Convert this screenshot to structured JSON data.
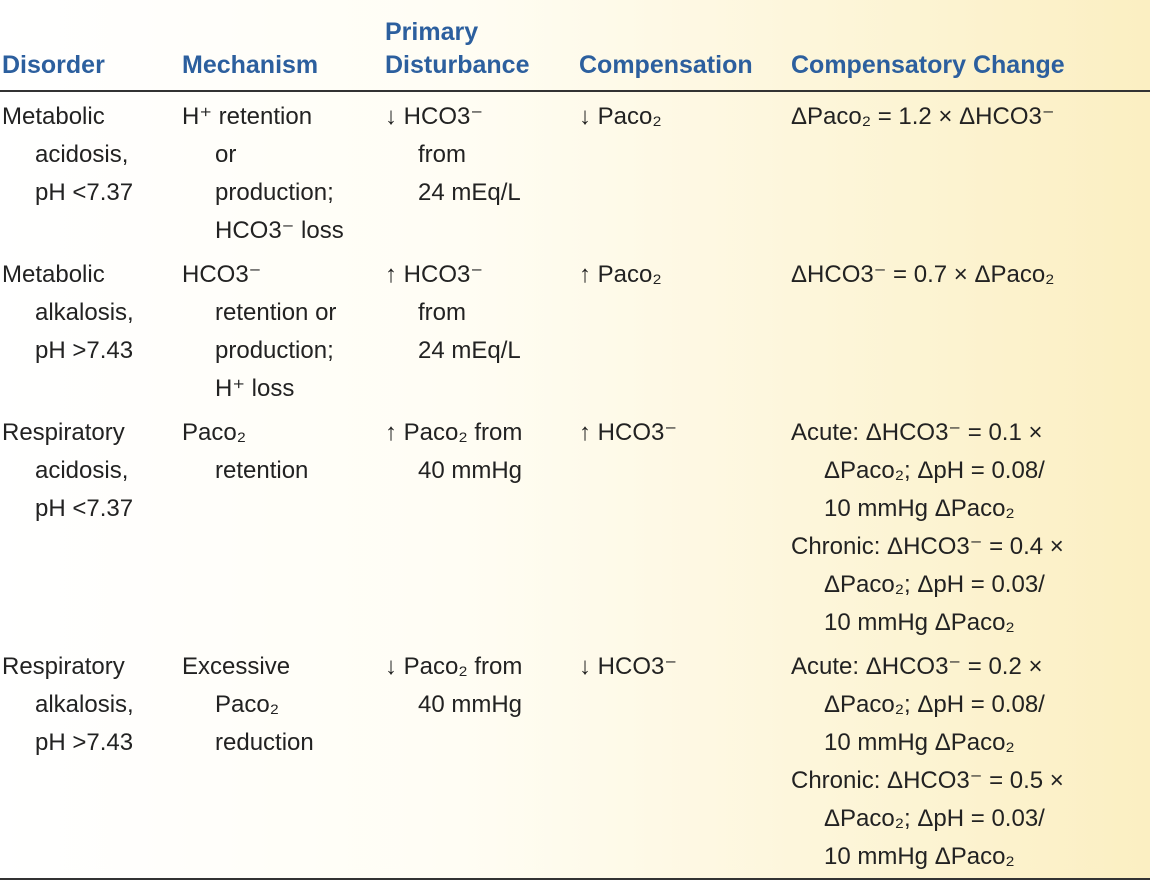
{
  "table": {
    "header": [
      [
        "Disorder"
      ],
      [
        "Mechanism"
      ],
      [
        "Primary",
        "Disturbance"
      ],
      [
        "Compensation"
      ],
      [
        "Compensatory Change"
      ]
    ],
    "rows": [
      [
        [
          [
            "Metabolic",
            "acidosis,",
            "pH <7.37"
          ]
        ],
        [
          [
            "H⁺ retention",
            "or",
            "production;",
            "HCO3⁻ loss"
          ]
        ],
        [
          [
            "↓ HCO3⁻",
            "from",
            "24 mEq/L"
          ]
        ],
        [
          [
            "↓ Paco₂"
          ]
        ],
        [
          [
            "ΔPaco₂ = 1.2 × ΔHCO3⁻"
          ]
        ]
      ],
      [
        [
          [
            "Metabolic",
            "alkalosis,",
            "pH >7.43"
          ]
        ],
        [
          [
            "HCO3⁻",
            "retention or",
            "production;",
            "H⁺ loss"
          ]
        ],
        [
          [
            "↑ HCO3⁻",
            "from",
            "24 mEq/L"
          ]
        ],
        [
          [
            "↑ Paco₂"
          ]
        ],
        [
          [
            "ΔHCO3⁻ = 0.7 × ΔPaco₂"
          ]
        ]
      ],
      [
        [
          [
            "Respiratory",
            "acidosis,",
            "pH <7.37"
          ]
        ],
        [
          [
            "Paco₂",
            "retention"
          ]
        ],
        [
          [
            "↑ Paco₂ from",
            "40 mmHg"
          ]
        ],
        [
          [
            "↑ HCO3⁻"
          ]
        ],
        [
          [
            "Acute: ΔHCO3⁻ = 0.1 ×",
            "ΔPaco₂; ΔpH = 0.08/",
            "10 mmHg ΔPaco₂"
          ],
          [
            "Chronic: ΔHCO3⁻ = 0.4 ×",
            "ΔPaco₂; ΔpH = 0.03/",
            "10 mmHg ΔPaco₂"
          ]
        ]
      ],
      [
        [
          [
            "Respiratory",
            "alkalosis,",
            "pH >7.43"
          ]
        ],
        [
          [
            "Excessive",
            "Paco₂",
            "reduction"
          ]
        ],
        [
          [
            "↓ Paco₂ from",
            "40 mmHg"
          ]
        ],
        [
          [
            "↓ HCO3⁻"
          ]
        ],
        [
          [
            "Acute: ΔHCO3⁻ = 0.2 ×",
            "ΔPaco₂; ΔpH = 0.08/",
            "10 mmHg ΔPaco₂"
          ],
          [
            "Chronic: ΔHCO3⁻ = 0.5 ×",
            "ΔPaco₂; ΔpH = 0.03/",
            "10 mmHg ΔPaco₂"
          ]
        ]
      ]
    ]
  }
}
